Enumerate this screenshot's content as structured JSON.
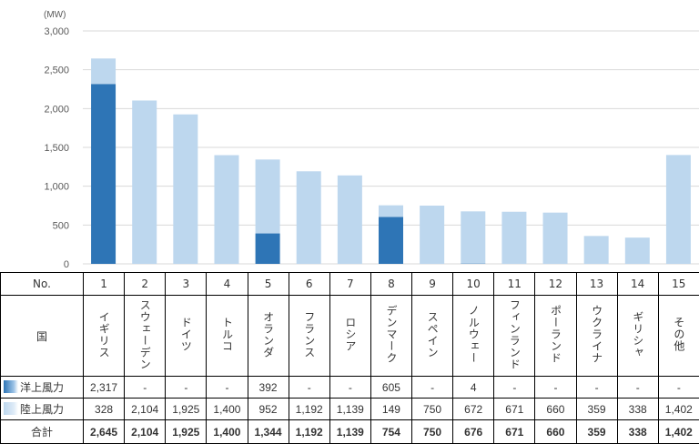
{
  "chart_data": {
    "type": "bar",
    "stacked": true,
    "unit": "(MW)",
    "ylim": [
      0,
      3000
    ],
    "yticks": [
      "0",
      "500",
      "1,000",
      "1,500",
      "2,000",
      "2,500",
      "3,000"
    ],
    "grid": true,
    "categories": [
      "1",
      "2",
      "3",
      "4",
      "5",
      "6",
      "7",
      "8",
      "9",
      "10",
      "11",
      "12",
      "13",
      "14",
      "15"
    ],
    "series": [
      {
        "name": "洋上風力",
        "color": "#2e75b6",
        "values": [
          2317,
          0,
          0,
          0,
          392,
          0,
          0,
          605,
          0,
          4,
          0,
          0,
          0,
          0,
          0
        ]
      },
      {
        "name": "陸上風力",
        "color": "#bdd7ee",
        "values": [
          328,
          2104,
          1925,
          1400,
          952,
          1192,
          1139,
          149,
          750,
          672,
          671,
          660,
          359,
          338,
          1402
        ]
      }
    ]
  },
  "table": {
    "no_header": "No.",
    "country_header": "国",
    "total_header": "合計",
    "numbers": [
      "1",
      "2",
      "3",
      "4",
      "5",
      "6",
      "7",
      "8",
      "9",
      "10",
      "11",
      "12",
      "13",
      "14",
      "15"
    ],
    "countries": [
      "イギリス",
      "スウェーデン",
      "ドイツ",
      "トルコ",
      "オランダ",
      "フランス",
      "ロシア",
      "デンマーク",
      "スペイン",
      "ノルウェー",
      "フィンランド",
      "ポーランド",
      "ウクライナ",
      "ギリシャ",
      "その他"
    ],
    "offshore": [
      "2,317",
      "-",
      "-",
      "-",
      "392",
      "-",
      "-",
      "605",
      "-",
      "4",
      "-",
      "-",
      "-",
      "-",
      "-"
    ],
    "onshore": [
      "328",
      "2,104",
      "1,925",
      "1,400",
      "952",
      "1,192",
      "1,139",
      "149",
      "750",
      "672",
      "671",
      "660",
      "359",
      "338",
      "1,402"
    ],
    "totals": [
      "2,645",
      "2,104",
      "1,925",
      "1,400",
      "1,344",
      "1,192",
      "1,139",
      "754",
      "750",
      "676",
      "671",
      "660",
      "359",
      "338",
      "1,402"
    ]
  }
}
